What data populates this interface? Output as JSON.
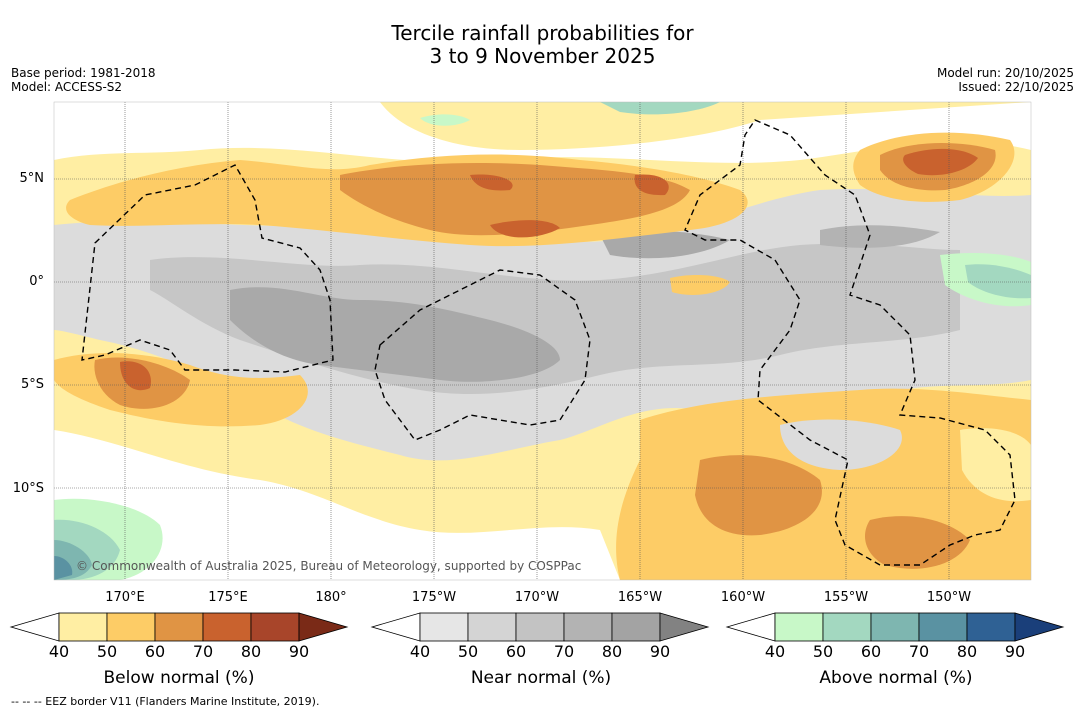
{
  "title": {
    "line1": "Tercile rainfall probabilities for",
    "line2": "3 to 9 November 2025"
  },
  "meta_left": {
    "base_period": "Base period: 1981-2018",
    "model": "Model: ACCESS-S2"
  },
  "meta_right": {
    "model_run": "Model run: 20/10/2025",
    "issued": "Issued: 22/10/2025"
  },
  "map": {
    "latitude_labels": [
      "5°N",
      "0°",
      "5°S",
      "10°S"
    ],
    "longitude_labels": [
      "170°E",
      "175°E",
      "180°",
      "175°W",
      "170°W",
      "165°W",
      "160°W",
      "155°W",
      "150°W"
    ],
    "copyright": "© Commonwealth of Australia 2025, Bureau of Meteorology, supported by COSPPac",
    "eez_note": "--  --  -- EEZ border V11 (Flanders Marine Institute, 2019)."
  },
  "legends": [
    {
      "name": "Below normal (%)",
      "ticks": [
        "40",
        "50",
        "60",
        "70",
        "80",
        "90"
      ],
      "colors": [
        "#ffffff",
        "#ffeea3",
        "#fdcc66",
        "#e09444",
        "#c9622e",
        "#a8452a",
        "#7a2a17"
      ]
    },
    {
      "name": "Near normal (%)",
      "ticks": [
        "40",
        "50",
        "60",
        "70",
        "80",
        "90"
      ],
      "colors": [
        "#ffffff",
        "#e6e6e6",
        "#d4d4d4",
        "#c3c3c3",
        "#b3b3b3",
        "#a3a3a3",
        "#828282"
      ]
    },
    {
      "name": "Above normal (%)",
      "ticks": [
        "40",
        "50",
        "60",
        "70",
        "80",
        "90"
      ],
      "colors": [
        "#ffffff",
        "#c8f8c8",
        "#a3d8c0",
        "#7eb6b0",
        "#5a92a2",
        "#2f6194",
        "#1a3f7a"
      ]
    }
  ]
}
